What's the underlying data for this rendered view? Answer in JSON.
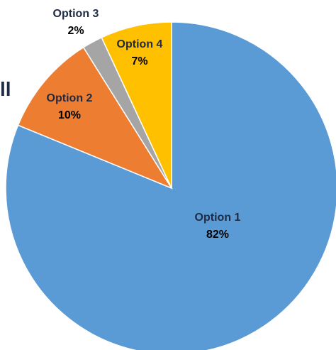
{
  "clipped_text": "ll",
  "chart_data": {
    "type": "pie",
    "title": "",
    "start_angle_deg": 0,
    "direction": "clockwise",
    "slices": [
      {
        "label": "Option 1",
        "value": 82,
        "value_label": "82%",
        "color": "#5b9bd5"
      },
      {
        "label": "Option 2",
        "value": 10,
        "value_label": "10%",
        "color": "#ed7d31"
      },
      {
        "label": "Option 3",
        "value": 2,
        "value_label": "2%",
        "color": "#a5a5a5"
      },
      {
        "label": "Option 4",
        "value": 7,
        "value_label": "7%",
        "color": "#ffc000"
      }
    ],
    "legend": "none",
    "data_labels": true
  }
}
